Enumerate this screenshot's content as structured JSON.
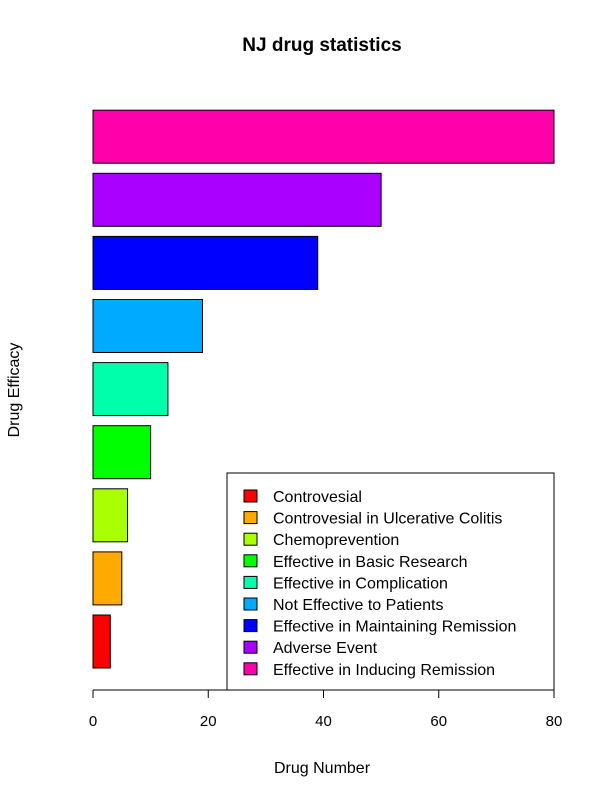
{
  "chart_data": {
    "type": "bar",
    "orientation": "horizontal",
    "title": "NJ drug statistics",
    "xlabel": "Drug Number",
    "ylabel": "Drug Efficacy",
    "xlim": [
      0,
      80
    ],
    "xticks": [
      0,
      20,
      40,
      60,
      80
    ],
    "grid": false,
    "legend_position": "bottom-right",
    "categories": [
      "Controvesial",
      "Controvesial in Ulcerative Colitis",
      "Chemoprevention",
      "Effective in Basic Research",
      "Effective in Complication",
      "Not Effective to Patients",
      "Effective in Maintaining Remission",
      "Adverse Event",
      "Effective in Inducing Remission"
    ],
    "values": [
      3,
      5,
      6,
      10,
      13,
      19,
      39,
      50,
      80
    ],
    "colors": [
      "#FF0000",
      "#FFAA00",
      "#AAFF00",
      "#00FF00",
      "#00FFAA",
      "#00AAFF",
      "#0000FF",
      "#AA00FF",
      "#FF00AA"
    ]
  }
}
